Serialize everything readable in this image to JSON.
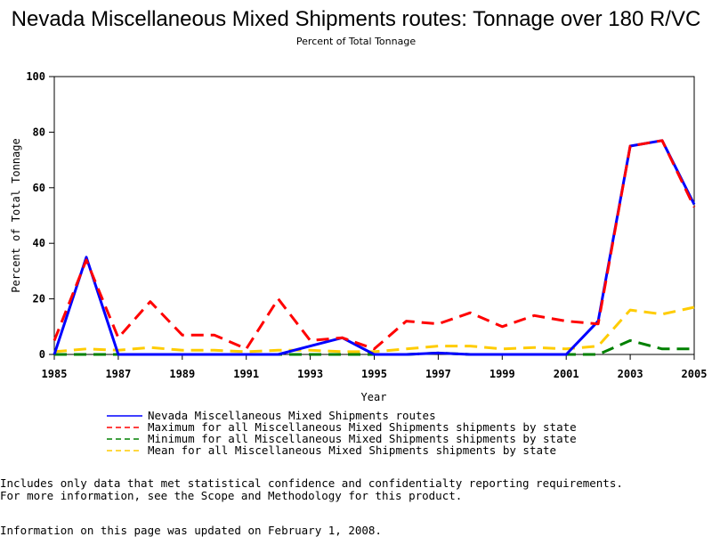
{
  "title": "Nevada Miscellaneous Mixed Shipments routes: Tonnage over 180 R/VC",
  "subtitle": "Percent of Total Tonnage",
  "notes": {
    "line1": "Includes only data that met statistical confidence and confidentialty reporting requirements.",
    "line2": "For more information, see the Scope and Methodology for this product."
  },
  "updated": "Information on this page was updated on February 1, 2008.",
  "chart_data": {
    "type": "line",
    "xlabel": "Year",
    "ylabel": "Percent of Total Tonnage",
    "xlim": [
      1985,
      2005
    ],
    "ylim": [
      0,
      100
    ],
    "xticks": [
      1985,
      1987,
      1989,
      1991,
      1993,
      1995,
      1997,
      1999,
      2001,
      2003,
      2005
    ],
    "yticks": [
      0,
      20,
      40,
      60,
      80,
      100
    ],
    "grid": false,
    "legend_position": "bottom",
    "x": [
      1985,
      1986,
      1987,
      1988,
      1989,
      1990,
      1991,
      1992,
      1993,
      1994,
      1995,
      1996,
      1997,
      1998,
      1999,
      2000,
      2001,
      2002,
      2003,
      2004,
      2005
    ],
    "series": [
      {
        "name": "Nevada Miscellaneous Mixed Shipments routes",
        "color": "#0000ff",
        "dash": "solid",
        "values": [
          0,
          35,
          0,
          0,
          0,
          0,
          0,
          0,
          3,
          6,
          0,
          0,
          0.5,
          0,
          0,
          0,
          0,
          12,
          75,
          77,
          54
        ]
      },
      {
        "name": "Maximum for all Miscellaneous Mixed Shipments shipments by state",
        "color": "#ff0000",
        "dash": "dashed",
        "values": [
          5,
          34,
          6,
          19,
          7,
          7,
          2,
          20,
          5,
          6,
          2,
          12,
          11,
          15,
          10,
          14,
          12,
          11,
          75,
          77,
          53
        ]
      },
      {
        "name": "Minimum for all Miscellaneous Mixed Shipments shipments by state",
        "color": "#008000",
        "dash": "dashed",
        "values": [
          0,
          0,
          0,
          0,
          0,
          0,
          0,
          0,
          0,
          0,
          0,
          0,
          0.5,
          0,
          0,
          0,
          0,
          0,
          5,
          2,
          2
        ]
      },
      {
        "name": "Mean for all Miscellaneous Mixed Shipments shipments by state",
        "color": "#ffcc00",
        "dash": "dashed",
        "values": [
          1,
          2,
          1.5,
          2.5,
          1.5,
          1.5,
          1,
          1.5,
          1.5,
          1,
          1,
          2,
          3,
          3,
          2,
          2.5,
          2,
          3,
          16,
          14.5,
          17
        ]
      }
    ]
  }
}
